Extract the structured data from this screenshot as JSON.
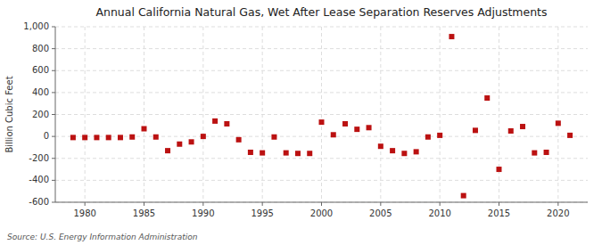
{
  "chart_data": {
    "type": "scatter",
    "title": "Annual California Natural Gas, Wet After Lease Separation Reserves Adjustments",
    "y_label": "Billion Cubic Feet",
    "annotations": [
      "Source: U.S. Energy Information Administration"
    ],
    "x": [
      1979,
      1980,
      1981,
      1982,
      1983,
      1984,
      1985,
      1986,
      1987,
      1988,
      1989,
      1990,
      1991,
      1992,
      1993,
      1994,
      1995,
      1996,
      1997,
      1998,
      1999,
      2000,
      2001,
      2002,
      2003,
      2004,
      2005,
      2006,
      2007,
      2008,
      2009,
      2010,
      2011,
      2012,
      2013,
      2014,
      2015,
      2016,
      2017,
      2018,
      2019,
      2020,
      2021
    ],
    "values": [
      -10,
      -10,
      -10,
      -10,
      -10,
      -5,
      70,
      -5,
      -130,
      -70,
      -50,
      0,
      140,
      115,
      -30,
      -145,
      -150,
      -5,
      -150,
      -155,
      -155,
      130,
      15,
      115,
      65,
      80,
      -90,
      -130,
      -155,
      -140,
      -5,
      10,
      910,
      -540,
      55,
      350,
      -300,
      50,
      90,
      -150,
      -145,
      120,
      10
    ],
    "color": "#bb1111",
    "marker": "square",
    "xlim": [
      1977.5,
      2022.5
    ],
    "ylim": [
      -600,
      1000
    ],
    "xticks": [
      1980,
      1985,
      1990,
      1995,
      2000,
      2005,
      2010,
      2015,
      2020
    ],
    "yticks": [
      -600,
      -400,
      -200,
      0,
      200,
      400,
      600,
      800,
      {
        "value": 1000,
        "label": "1,000"
      }
    ],
    "grid": true
  }
}
